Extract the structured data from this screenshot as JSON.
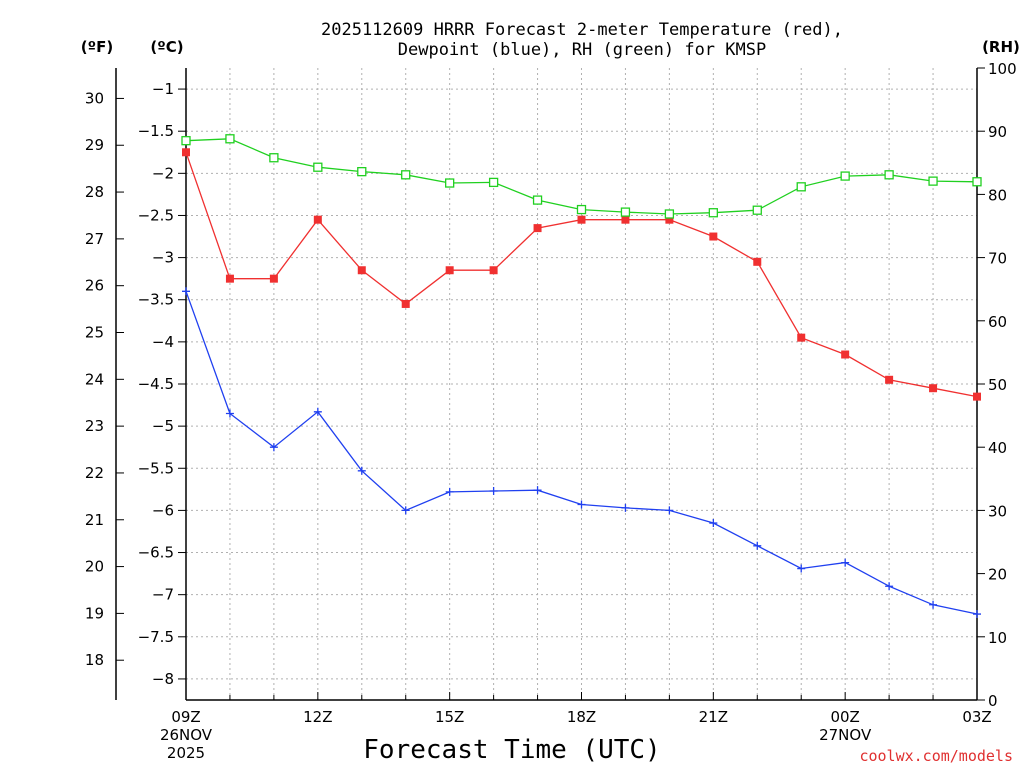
{
  "chart_data": {
    "type": "line",
    "title_line1": "2025112609 HRRR Forecast 2-meter Temperature (red),",
    "title_line2": "Dewpoint (blue), RH (green) for KMSP",
    "xlabel": "Forecast Time (UTC)",
    "credit": "coolwx.com/models",
    "units": {
      "fahrenheit": "(ºF)",
      "celsius": "(ºC)",
      "rh": "(RH)"
    },
    "x_ticks": [
      {
        "hour": 0,
        "label": "09Z",
        "sub1": "26NOV",
        "sub2": "2025"
      },
      {
        "hour": 3,
        "label": "12Z"
      },
      {
        "hour": 6,
        "label": "15Z"
      },
      {
        "hour": 9,
        "label": "18Z"
      },
      {
        "hour": 12,
        "label": "21Z"
      },
      {
        "hour": 15,
        "label": "00Z",
        "sub1": "27NOV"
      },
      {
        "hour": 18,
        "label": "03Z"
      }
    ],
    "xlim": [
      0,
      18
    ],
    "celsius_axis": {
      "ylim": [
        -8.25,
        -0.75
      ],
      "ticks": [
        -1,
        -1.5,
        -2,
        -2.5,
        -3,
        -3.5,
        -4,
        -4.5,
        -5,
        -5.5,
        -6,
        -6.5,
        -7,
        -7.5,
        -8
      ],
      "tick_labels": [
        "−1",
        "−1.5",
        "−2",
        "−2.5",
        "−3",
        "−3.5",
        "−4",
        "−4.5",
        "−5",
        "−5.5",
        "−6",
        "−6.5",
        "−7",
        "−7.5",
        "−8"
      ]
    },
    "fahrenheit_axis": {
      "ticks": [
        30,
        29,
        28,
        27,
        26,
        25,
        24,
        23,
        22,
        21,
        20,
        19,
        18
      ],
      "tick_labels": [
        "30",
        "29",
        "28",
        "27",
        "26",
        "25",
        "24",
        "23",
        "22",
        "21",
        "20",
        "19",
        "18"
      ]
    },
    "rh_axis": {
      "ylim": [
        0,
        100
      ],
      "ticks": [
        0,
        10,
        20,
        30,
        40,
        50,
        60,
        70,
        80,
        90,
        100
      ],
      "tick_labels": [
        "0",
        "10",
        "20",
        "30",
        "40",
        "50",
        "60",
        "70",
        "80",
        "90",
        "100"
      ]
    },
    "x": [
      0,
      1,
      2,
      3,
      4,
      5,
      6,
      7,
      8,
      9,
      10,
      11,
      12,
      13,
      14,
      15,
      16,
      17,
      18
    ],
    "series": [
      {
        "name": "Temperature",
        "unit": "C",
        "color": "#f03030",
        "marker": "filled-square",
        "values": [
          -1.75,
          -3.25,
          -3.25,
          -2.55,
          -3.15,
          -3.55,
          -3.15,
          -3.15,
          -2.65,
          -2.55,
          -2.55,
          -2.55,
          -2.75,
          -3.05,
          -3.95,
          -4.15,
          -4.45,
          -4.55,
          -4.65
        ]
      },
      {
        "name": "Dewpoint",
        "unit": "C",
        "color": "#2040f0",
        "marker": "plus",
        "values": [
          -3.4,
          -4.85,
          -5.25,
          -4.83,
          -5.53,
          -6.0,
          -5.78,
          -5.77,
          -5.76,
          -5.93,
          -5.97,
          -6.0,
          -6.15,
          -6.42,
          -6.69,
          -6.62,
          -6.9,
          -7.12,
          -7.23
        ]
      },
      {
        "name": "RH",
        "unit": "%",
        "color": "#20d020",
        "marker": "open-square",
        "values": [
          88.5,
          88.8,
          85.8,
          84.3,
          83.6,
          83.1,
          81.8,
          81.9,
          79.1,
          77.6,
          77.2,
          76.9,
          77.1,
          77.5,
          81.2,
          82.9,
          83.1,
          82.1,
          82.0
        ]
      }
    ]
  }
}
